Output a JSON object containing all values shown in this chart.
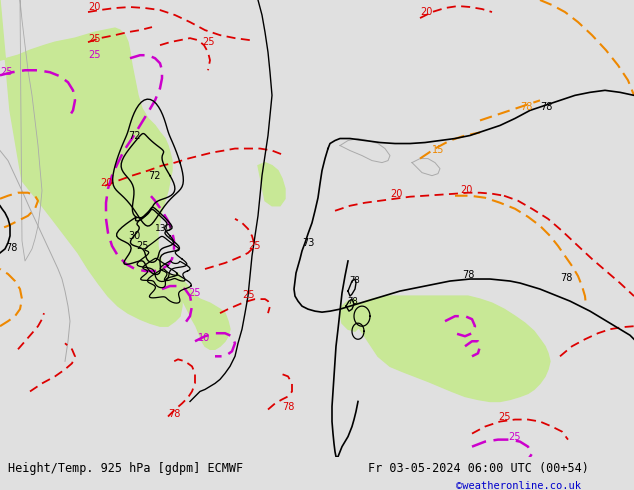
{
  "title_left": "Height/Temp. 925 hPa [gdpm] ECMWF",
  "title_right": "Fr 03-05-2024 06:00 UTC (00+54)",
  "credit": "©weatheronline.co.uk",
  "footer_text_color": "#000000",
  "credit_color": "#0000cc",
  "black_col": "#000000",
  "red_col": "#dd0000",
  "magenta_col": "#cc00cc",
  "orange_col": "#ee8800",
  "green_col": "#c8e896",
  "gray_col": "#aaaaaa",
  "footer_fontsize": 8.5,
  "credit_fontsize": 7.5,
  "label_fontsize": 7,
  "figsize": [
    6.34,
    4.9
  ],
  "dpi": 100
}
